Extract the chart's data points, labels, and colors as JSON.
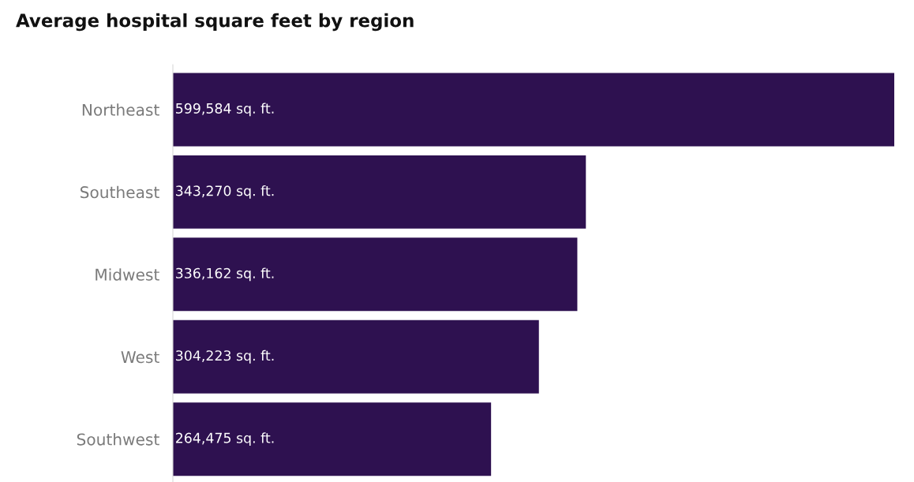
{
  "chart_data": {
    "type": "bar",
    "orientation": "horizontal",
    "title": "Average hospital square feet by region",
    "categories": [
      "Northeast",
      "Southeast",
      "Midwest",
      "West",
      "Southwest"
    ],
    "values": [
      599584,
      343270,
      336162,
      304223,
      264475
    ],
    "value_labels": [
      "599,584 sq. ft.",
      "343,270 sq. ft.",
      "336,162 sq. ft.",
      "304,223 sq. ft.",
      "264,475 sq. ft."
    ],
    "color": "#2e1150",
    "grid": false,
    "legend": false,
    "tick_labels": "y"
  }
}
